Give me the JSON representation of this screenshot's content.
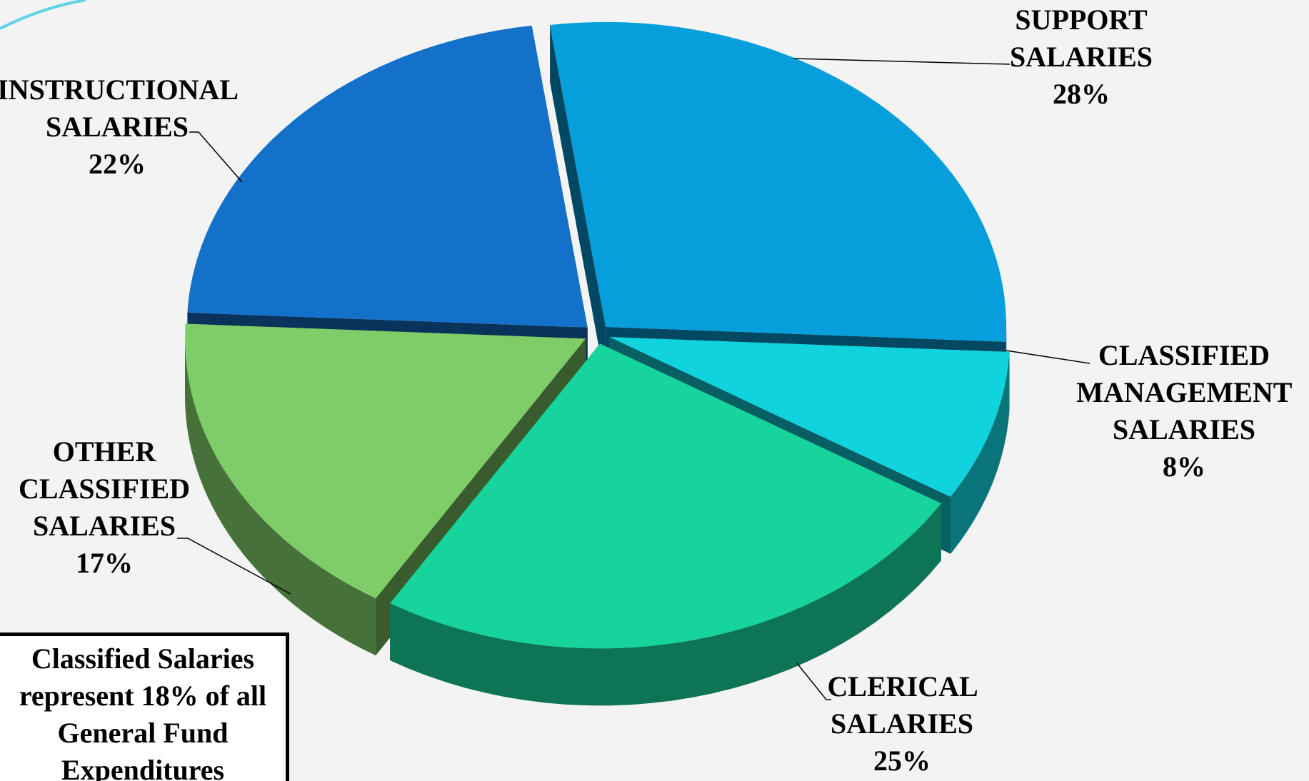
{
  "chart_data": {
    "type": "pie",
    "categories": [
      "SUPPORT SALARIES",
      "CLASSIFIED MANAGEMENT SALARIES",
      "CLERICAL SALARIES",
      "OTHER CLASSIFIED SALARIES",
      "INSTRUCTIONAL SALARIES"
    ],
    "values": [
      28,
      8,
      25,
      17,
      22
    ],
    "value_labels": [
      "28%",
      "8%",
      "25%",
      "17%",
      "22%"
    ],
    "colors": [
      "#079fdb",
      "#10d3de",
      "#17d39c",
      "#7fcd69",
      "#1371c9"
    ],
    "annotation": "Classified Salaries represent 18% of all General Fund Expenditures"
  }
}
